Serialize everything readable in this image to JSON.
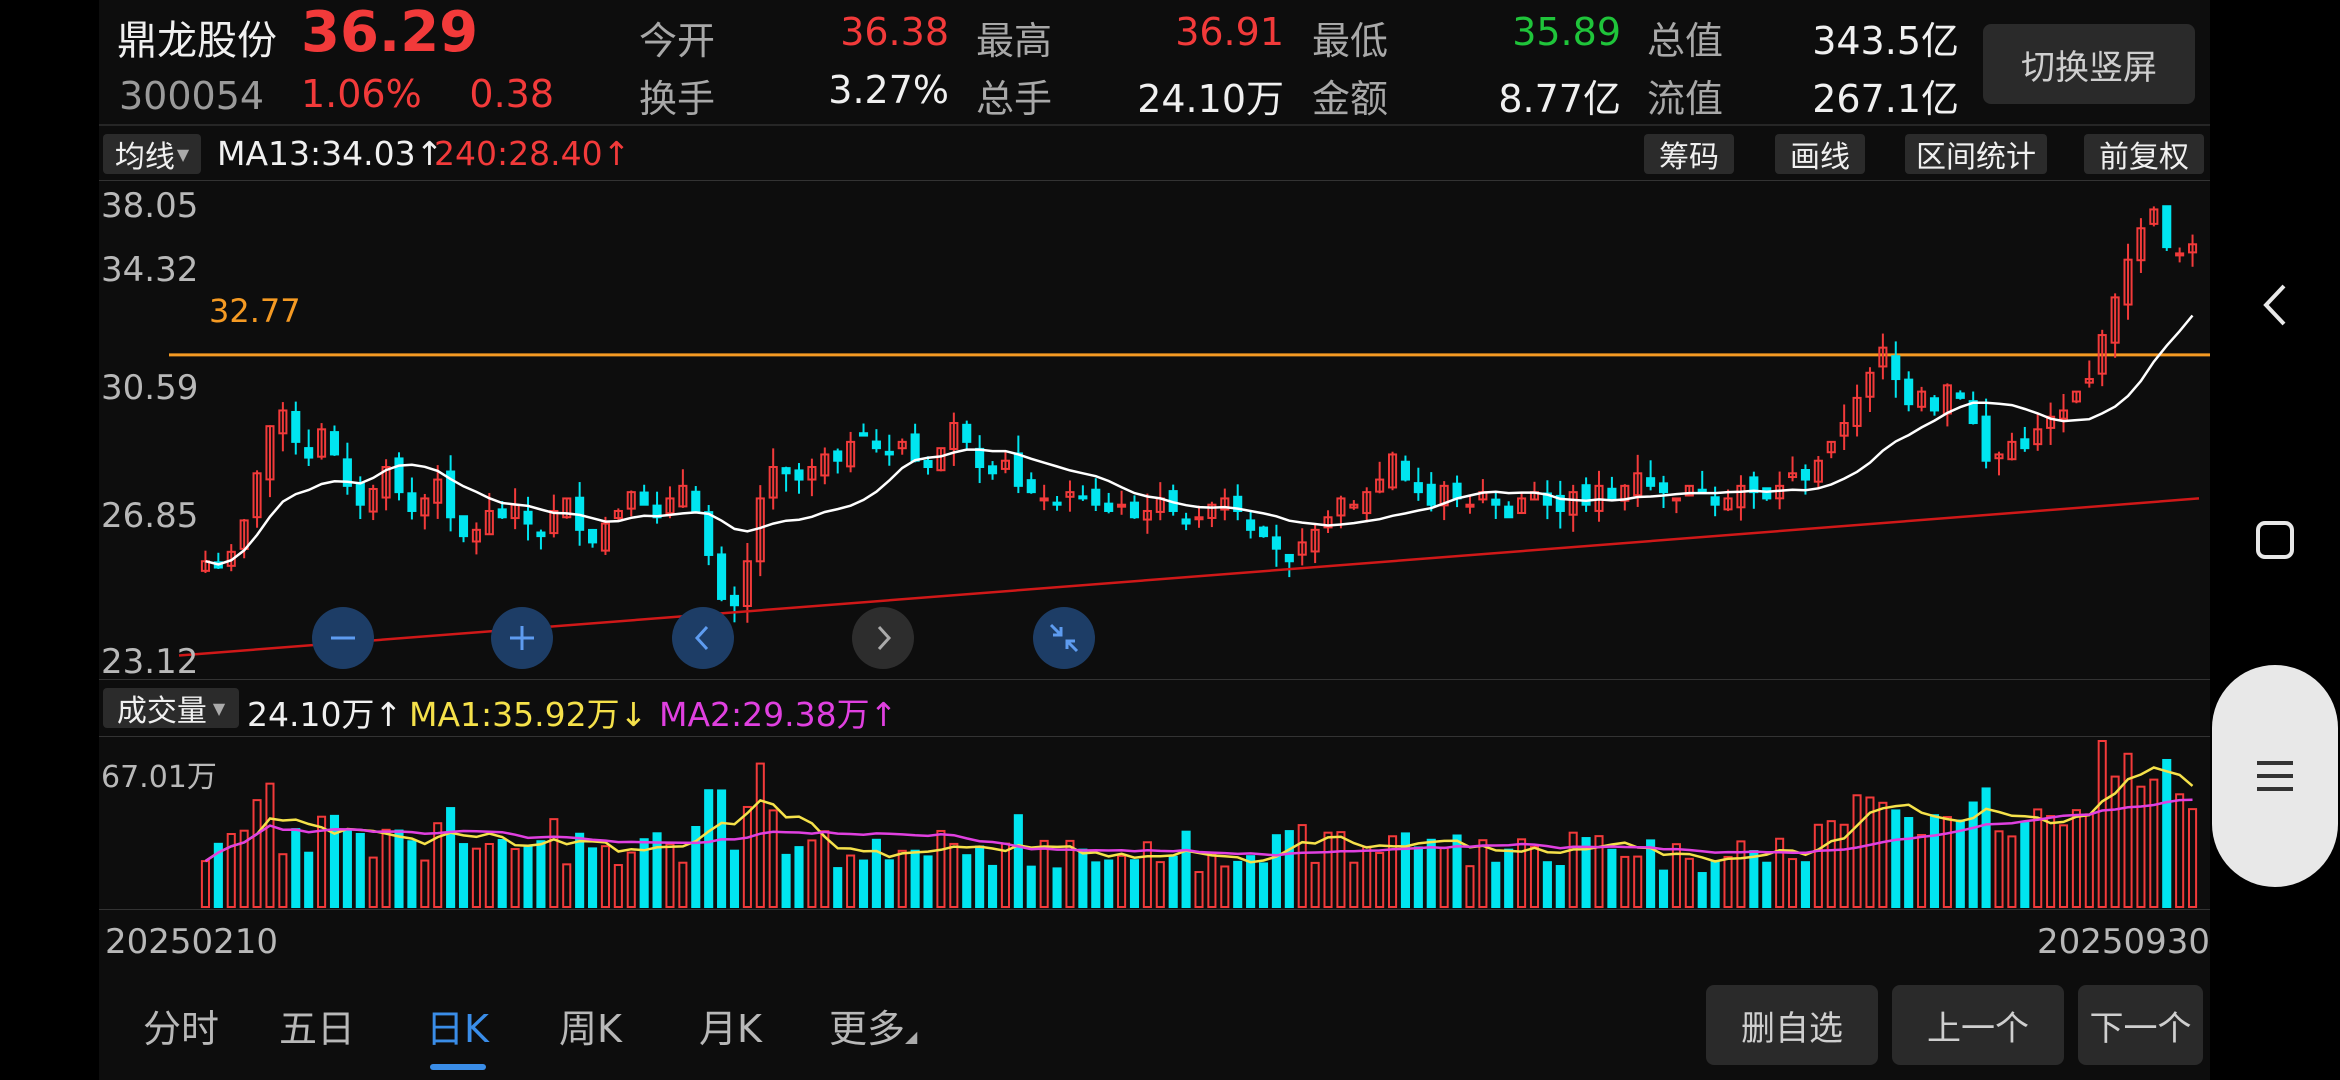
{
  "stock": {
    "name": "鼎龙股份",
    "code": "300054",
    "price": "36.29",
    "change_pct": "1.06%",
    "change": "0.38"
  },
  "stats": [
    {
      "label": "今开",
      "value": "36.38",
      "color": "red"
    },
    {
      "label": "最高",
      "value": "36.91",
      "color": "red"
    },
    {
      "label": "最低",
      "value": "35.89",
      "color": "green"
    },
    {
      "label": "总值",
      "value": "343.5亿",
      "color": "white"
    },
    {
      "label": "换手",
      "value": "3.27%",
      "color": "white"
    },
    {
      "label": "总手",
      "value": "24.10万",
      "color": "white"
    },
    {
      "label": "金额",
      "value": "8.77亿",
      "color": "white"
    },
    {
      "label": "流值",
      "value": "267.1亿",
      "color": "white"
    }
  ],
  "toolbar": {
    "switch_orientation": "切换竖屏",
    "ma_selector": "均线",
    "ma13": "MA13:34.03↑",
    "ma240": "240:28.40↑",
    "chips": "筹码",
    "draw": "画线",
    "range_stats": "区间统计",
    "adjust": "前复权"
  },
  "price_axis": [
    "38.05",
    "34.32",
    "30.59",
    "26.85",
    "23.12"
  ],
  "reference_line_label": "32.77",
  "volume_bar": {
    "selector": "成交量",
    "vol": "24.10万↑",
    "ma1": "MA1:35.92万↓",
    "ma2": "MA2:29.38万↑",
    "max_label": "67.01万"
  },
  "dates": {
    "start": "20250210",
    "end": "20250930"
  },
  "tabs": [
    {
      "label": "分时",
      "active": false
    },
    {
      "label": "五日",
      "active": false
    },
    {
      "label": "日K",
      "active": true
    },
    {
      "label": "周K",
      "active": false
    },
    {
      "label": "月K",
      "active": false
    },
    {
      "label": "更多",
      "active": false
    }
  ],
  "actions": {
    "remove_watch": "删自选",
    "prev": "上一个",
    "next": "下一个"
  },
  "colors": {
    "up": "#f23a3a",
    "down": "#00e5f0",
    "ma13": "#ffffff",
    "ma240": "#d01818",
    "ref_line": "#f59a23",
    "vol_ma1": "#f5e14a",
    "vol_ma2": "#e040e0",
    "active_tab": "#3a8de8"
  },
  "icons": {
    "zoom_out": "minus-icon",
    "zoom_in": "plus-icon",
    "scroll_left": "chevron-left-icon",
    "scroll_right": "chevron-right-icon",
    "collapse": "collapse-icon",
    "nav_back": "chevron-left-icon",
    "nav_home": "square-icon",
    "nav_menu": "menu-icon"
  },
  "chart_data": {
    "type": "candlestick",
    "ylim": [
      23.12,
      38.05
    ],
    "reference_line": 32.77,
    "close_series": [
      26.2,
      26.0,
      26.5,
      27.5,
      29.0,
      30.5,
      31.0,
      30.0,
      29.5,
      30.4,
      29.6,
      28.6,
      28.0,
      28.5,
      29.2,
      28.4,
      27.8,
      28.2,
      28.8,
      27.6,
      27.0,
      27.2,
      27.8,
      27.6,
      28.0,
      27.4,
      27.0,
      27.8,
      28.2,
      27.2,
      26.8,
      27.4,
      27.8,
      28.4,
      28.0,
      27.6,
      28.2,
      28.6,
      27.8,
      26.4,
      25.0,
      24.8,
      26.2,
      28.2,
      29.2,
      29.0,
      28.8,
      29.2,
      29.6,
      29.4,
      30.0,
      30.2,
      29.8,
      29.6,
      30.0,
      29.4,
      29.2,
      29.8,
      30.6,
      30.0,
      29.2,
      29.0,
      29.4,
      28.6,
      28.4,
      28.2,
      28.0,
      28.4,
      28.2,
      28.0,
      27.8,
      28.0,
      27.6,
      27.8,
      28.2,
      27.8,
      27.4,
      27.6,
      28.0,
      28.2,
      27.8,
      27.2,
      27.0,
      26.6,
      26.2,
      26.8,
      27.2,
      27.6,
      28.2,
      28.0,
      28.4,
      28.8,
      29.6,
      28.8,
      28.4,
      28.0,
      28.6,
      28.2,
      28.0,
      28.4,
      28.0,
      27.6,
      28.2,
      28.4,
      28.0,
      27.8,
      28.4,
      28.0,
      28.6,
      28.2,
      28.6,
      29.0,
      28.6,
      28.4,
      28.2,
      28.6,
      28.4,
      28.0,
      28.2,
      28.6,
      28.4,
      28.2,
      28.6,
      29.0,
      28.8,
      29.4,
      30.0,
      30.6,
      31.4,
      32.2,
      33.0,
      32.0,
      31.2,
      31.6,
      31.0,
      31.8,
      31.4,
      30.6,
      29.4,
      29.6,
      30.0,
      29.8,
      30.4,
      30.8,
      31.0,
      31.6,
      32.0,
      33.4,
      34.6,
      35.8,
      36.8,
      37.4,
      36.2,
      36.0,
      36.29
    ],
    "ma13_last": 34.03,
    "ma240_last": 28.4,
    "volume_max": "67.01万"
  }
}
